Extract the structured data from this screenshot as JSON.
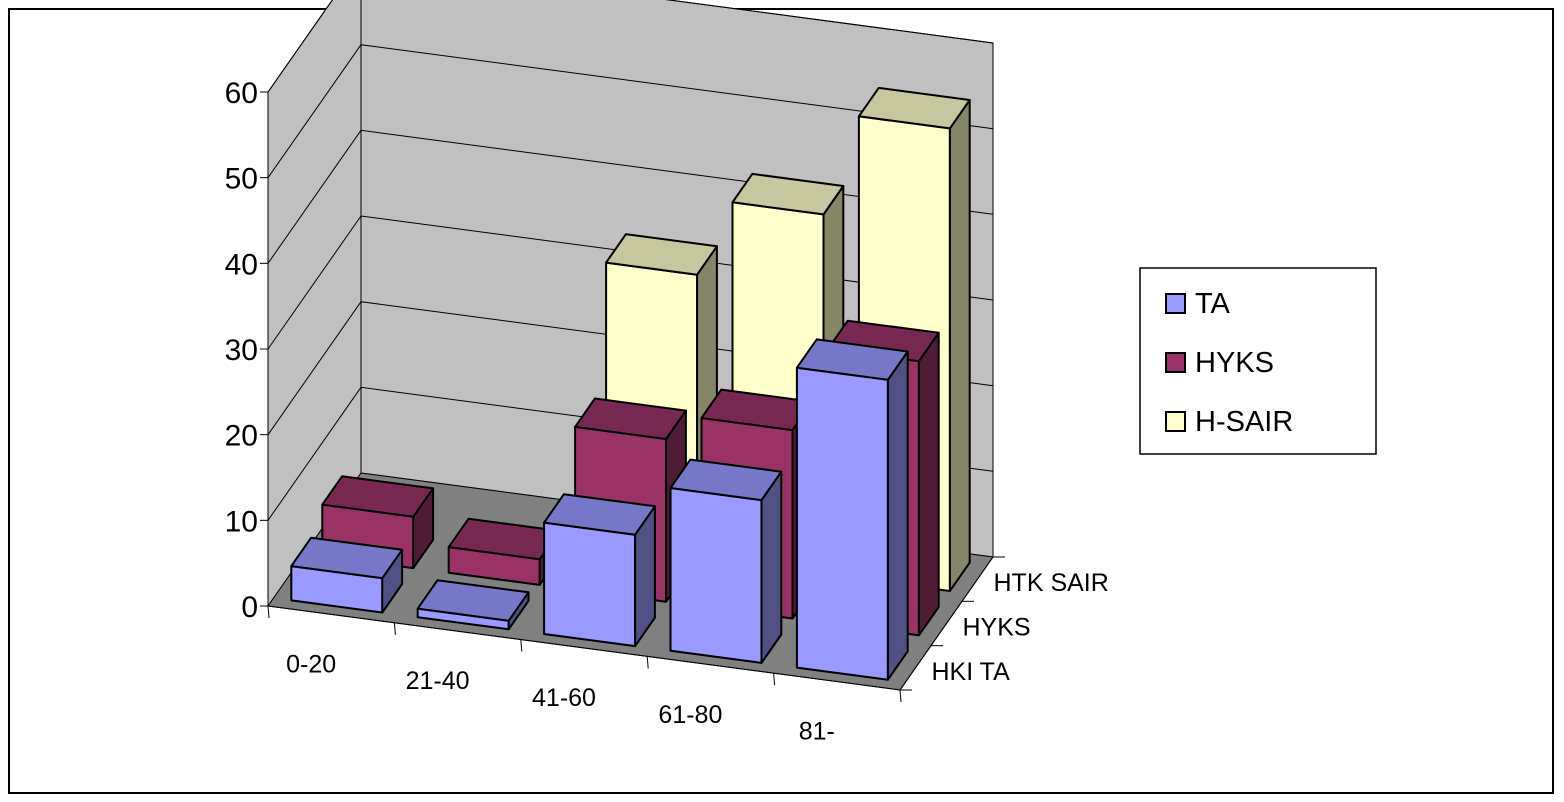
{
  "chart_data": {
    "type": "bar",
    "subtype": "3d-column",
    "title": "",
    "categories": [
      "0-20",
      "21-40",
      "41-60",
      "61-80",
      "81-"
    ],
    "depth_labels": [
      "HKI TA",
      "HYKS",
      "HTK SAIR"
    ],
    "series": [
      {
        "name": "TA",
        "depth_row": "HKI TA",
        "values": [
          4,
          1,
          13,
          19,
          35
        ]
      },
      {
        "name": "HYKS",
        "depth_row": "HYKS",
        "values": [
          6,
          3,
          19,
          22,
          32
        ]
      },
      {
        "name": "H-SAIR",
        "depth_row": "HTK SAIR",
        "values": [
          0,
          0,
          33,
          42,
          54
        ]
      }
    ],
    "ylim": [
      0,
      60
    ],
    "yticks": [
      0,
      10,
      20,
      30,
      40,
      50,
      60
    ],
    "grid": true,
    "legend_position": "right",
    "colors": {
      "TA": "#9999FF",
      "HYKS": "#993366",
      "H-SAIR": "#FFFFCC",
      "wall": "#C0C0C0",
      "floor": "#808080"
    }
  }
}
